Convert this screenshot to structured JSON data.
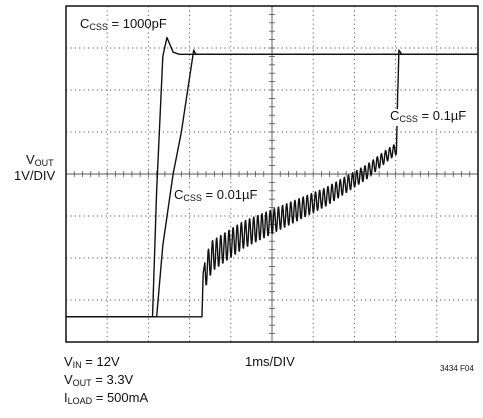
{
  "chart_data": {
    "type": "line",
    "title": "",
    "xlabel": "1ms/DIV",
    "ylabel": "VOUT 1V/DIV",
    "x_units": "ms",
    "y_units": "V",
    "xlim": [
      0,
      10
    ],
    "ylim": [
      -0.6,
      7.4
    ],
    "grid": true,
    "divisions": {
      "x": 10,
      "y": 8
    },
    "series": [
      {
        "name": "CCSS = 1000pF",
        "x": [
          0,
          2.1,
          2.2,
          2.35,
          2.45,
          2.6,
          2.75,
          2.85,
          10
        ],
        "y": [
          0,
          0,
          3.0,
          6.2,
          6.65,
          6.3,
          6.25,
          6.25,
          6.25
        ]
      },
      {
        "name": "CCSS = 0.01µF",
        "x": [
          0,
          2.2,
          2.35,
          2.6,
          2.8,
          3.0,
          3.1,
          3.15,
          10
        ],
        "y": [
          0,
          0,
          1.7,
          3.4,
          4.4,
          5.7,
          6.35,
          6.25,
          6.25
        ]
      },
      {
        "name": "CCSS = 0.1µF",
        "x": [
          0,
          3.3,
          3.35,
          3.55,
          4.3,
          5.3,
          6.3,
          7.3,
          7.8,
          8.02,
          8.08,
          8.15,
          10
        ],
        "y": [
          0,
          0,
          1.0,
          1.45,
          1.95,
          2.4,
          2.85,
          3.45,
          3.85,
          4.0,
          6.35,
          6.25,
          6.25
        ]
      }
    ],
    "annotations": {
      "c1_main": "C",
      "c1_sub": "CSS",
      "c1_val": " = 1000pF",
      "c2_main": "C",
      "c2_sub": "CSS",
      "c2_val": " = 0.01µF",
      "c3_main": "C",
      "c3_sub": "CSS",
      "c3_val": " = 0.1µF",
      "vout_main": "V",
      "vout_sub": "OUT",
      "vdiv": "1V/DIV",
      "timebase": "1ms/DIV",
      "cond_vin_main": "V",
      "cond_vin_sub": "IN",
      "cond_vin_val": " = 12V",
      "cond_vout_main": "V",
      "cond_vout_sub": "OUT",
      "cond_vout_val": " = 3.3V",
      "cond_iload_main": "I",
      "cond_iload_sub": "LOAD",
      "cond_iload_val": " = 500mA",
      "fig_id": "3434 F04"
    },
    "colors": {
      "trace": "#111111",
      "grid": "#555555",
      "background": "#ffffff"
    }
  }
}
